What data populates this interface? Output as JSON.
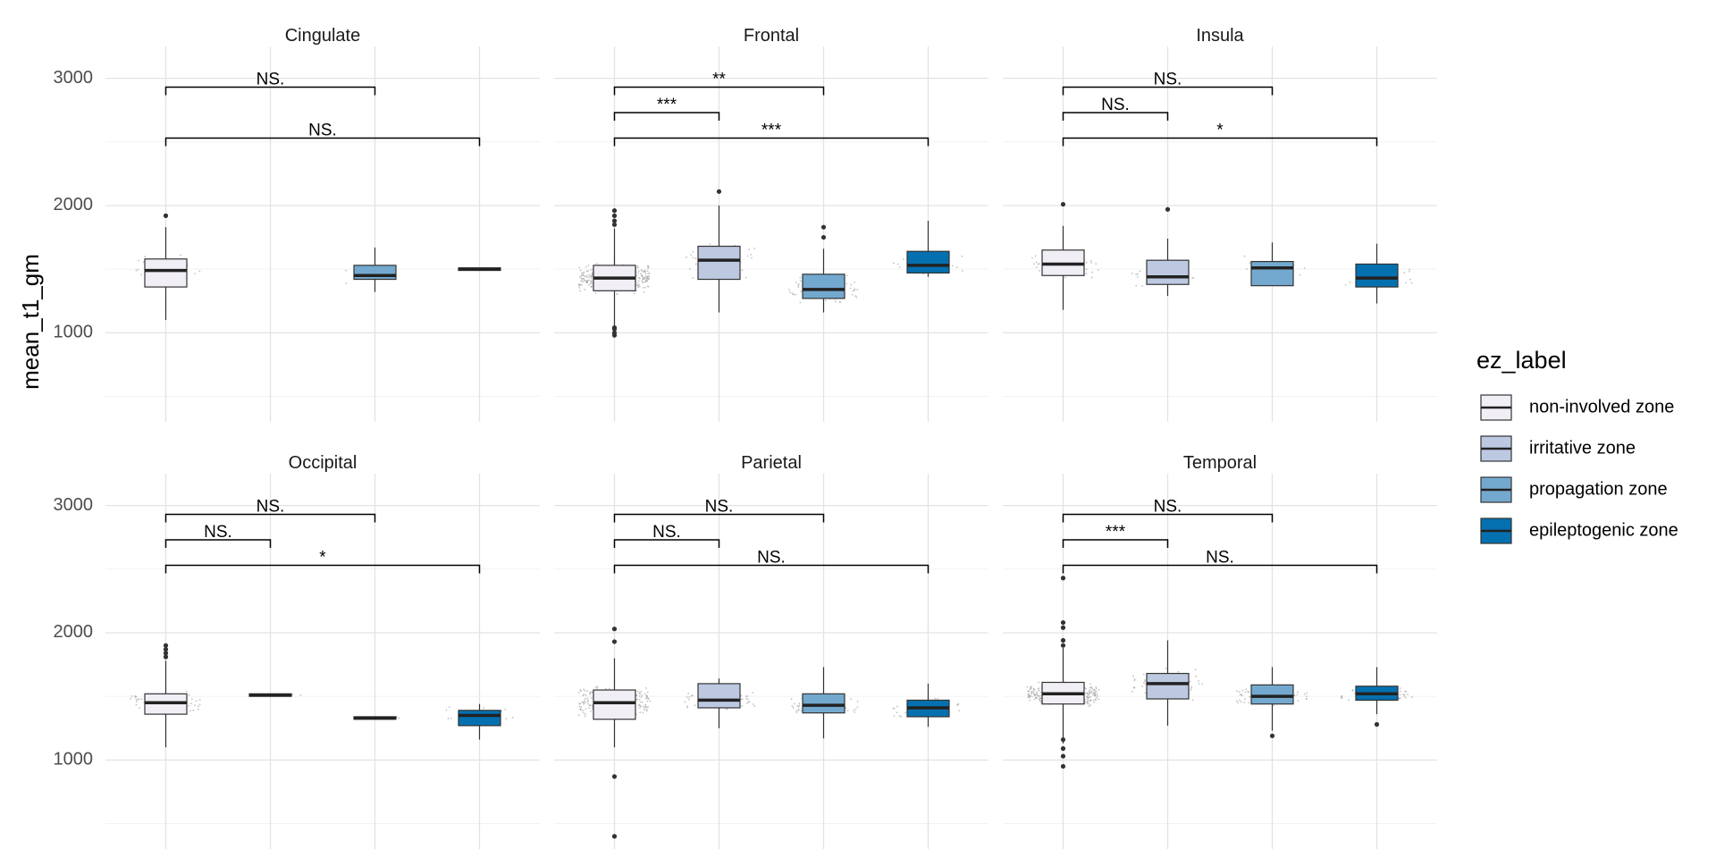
{
  "chart_data": {
    "type": "boxplot",
    "ylabel": "mean_t1_gm",
    "xlabel": "",
    "ylim": [
      300,
      3250
    ],
    "yticks": [
      1000,
      2000,
      3000
    ],
    "y_minor": [
      500,
      1500,
      2500
    ],
    "grid": true,
    "groups": [
      "non-involved zone",
      "irritative zone",
      "propagation zone",
      "epileptogenic zone"
    ],
    "colors": [
      "#f1eef6",
      "#bdc9e1",
      "#74a9cf",
      "#0570b0"
    ],
    "legend": {
      "title": "ez_label",
      "position": "right"
    },
    "facets": [
      {
        "name": "Cingulate",
        "boxes": [
          {
            "group": 0,
            "min": 1100,
            "q1": 1360,
            "median": 1490,
            "q3": 1580,
            "max": 1830,
            "outliers": [
              1920
            ],
            "jitter": 40
          },
          null,
          {
            "group": 2,
            "min": 1320,
            "q1": 1420,
            "median": 1450,
            "q3": 1530,
            "max": 1670,
            "outliers": [],
            "jitter": 8
          },
          {
            "group": 3,
            "min": 1490,
            "q1": 1490,
            "median": 1500,
            "q3": 1510,
            "max": 1510,
            "outliers": [],
            "jitter": 3
          }
        ],
        "comparisons": [
          {
            "from": 0,
            "to": 2,
            "y": 2930,
            "label": "NS."
          },
          {
            "from": 0,
            "to": 3,
            "y": 2530,
            "label": "NS."
          }
        ]
      },
      {
        "name": "Frontal",
        "boxes": [
          {
            "group": 0,
            "min": 1050,
            "q1": 1330,
            "median": 1430,
            "q3": 1530,
            "max": 1820,
            "outliers": [
              980,
              1000,
              1030,
              1040,
              1850,
              1880,
              1920,
              1960
            ],
            "jitter": 300
          },
          {
            "group": 1,
            "min": 1160,
            "q1": 1420,
            "median": 1570,
            "q3": 1680,
            "max": 2000,
            "outliers": [
              2110
            ],
            "jitter": 40
          },
          {
            "group": 2,
            "min": 1160,
            "q1": 1270,
            "median": 1340,
            "q3": 1460,
            "max": 1660,
            "outliers": [
              1750,
              1830
            ],
            "jitter": 70
          },
          {
            "group": 3,
            "min": 1440,
            "q1": 1470,
            "median": 1530,
            "q3": 1640,
            "max": 1880,
            "outliers": [],
            "jitter": 20
          }
        ],
        "comparisons": [
          {
            "from": 0,
            "to": 2,
            "y": 2930,
            "label": "**"
          },
          {
            "from": 0,
            "to": 1,
            "y": 2730,
            "label": "***"
          },
          {
            "from": 0,
            "to": 3,
            "y": 2530,
            "label": "***"
          }
        ]
      },
      {
        "name": "Insula",
        "boxes": [
          {
            "group": 0,
            "min": 1180,
            "q1": 1450,
            "median": 1540,
            "q3": 1650,
            "max": 1840,
            "outliers": [
              2010
            ],
            "jitter": 40
          },
          {
            "group": 1,
            "min": 1290,
            "q1": 1380,
            "median": 1440,
            "q3": 1570,
            "max": 1740,
            "outliers": [
              1970
            ],
            "jitter": 25
          },
          {
            "group": 2,
            "min": 1370,
            "q1": 1370,
            "median": 1510,
            "q3": 1560,
            "max": 1710,
            "outliers": [],
            "jitter": 12
          },
          {
            "group": 3,
            "min": 1230,
            "q1": 1360,
            "median": 1430,
            "q3": 1540,
            "max": 1700,
            "outliers": [],
            "jitter": 20
          }
        ],
        "comparisons": [
          {
            "from": 0,
            "to": 2,
            "y": 2930,
            "label": "NS."
          },
          {
            "from": 0,
            "to": 1,
            "y": 2730,
            "label": "NS."
          },
          {
            "from": 0,
            "to": 3,
            "y": 2530,
            "label": "*"
          }
        ]
      },
      {
        "name": "Occipital",
        "boxes": [
          {
            "group": 0,
            "min": 1100,
            "q1": 1360,
            "median": 1450,
            "q3": 1520,
            "max": 1780,
            "outliers": [
              1810,
              1840,
              1870,
              1900
            ],
            "jitter": 50
          },
          {
            "group": 1,
            "min": 1500,
            "q1": 1500,
            "median": 1510,
            "q3": 1520,
            "max": 1520,
            "outliers": [],
            "jitter": 4
          },
          {
            "group": 2,
            "min": 1320,
            "q1": 1320,
            "median": 1330,
            "q3": 1340,
            "max": 1340,
            "outliers": [],
            "jitter": 3
          },
          {
            "group": 3,
            "min": 1160,
            "q1": 1270,
            "median": 1350,
            "q3": 1390,
            "max": 1440,
            "outliers": [],
            "jitter": 10
          }
        ],
        "comparisons": [
          {
            "from": 0,
            "to": 2,
            "y": 2930,
            "label": "NS."
          },
          {
            "from": 0,
            "to": 1,
            "y": 2730,
            "label": "NS."
          },
          {
            "from": 0,
            "to": 3,
            "y": 2530,
            "label": "*"
          }
        ]
      },
      {
        "name": "Parietal",
        "boxes": [
          {
            "group": 0,
            "min": 1100,
            "q1": 1320,
            "median": 1450,
            "q3": 1550,
            "max": 1800,
            "outliers": [
              400,
              870,
              1930,
              2030
            ],
            "jitter": 220
          },
          {
            "group": 1,
            "min": 1250,
            "q1": 1410,
            "median": 1470,
            "q3": 1600,
            "max": 1640,
            "outliers": [],
            "jitter": 50
          },
          {
            "group": 2,
            "min": 1170,
            "q1": 1370,
            "median": 1430,
            "q3": 1520,
            "max": 1730,
            "outliers": [],
            "jitter": 50
          },
          {
            "group": 3,
            "min": 1260,
            "q1": 1340,
            "median": 1410,
            "q3": 1470,
            "max": 1600,
            "outliers": [],
            "jitter": 30
          }
        ],
        "comparisons": [
          {
            "from": 0,
            "to": 2,
            "y": 2930,
            "label": "NS."
          },
          {
            "from": 0,
            "to": 1,
            "y": 2730,
            "label": "NS."
          },
          {
            "from": 0,
            "to": 3,
            "y": 2530,
            "label": "NS."
          }
        ]
      },
      {
        "name": "Temporal",
        "boxes": [
          {
            "group": 0,
            "min": 1130,
            "q1": 1440,
            "median": 1520,
            "q3": 1610,
            "max": 1880,
            "outliers": [
              950,
              1030,
              1090,
              1160,
              1900,
              1940,
              2040,
              2080,
              2430
            ],
            "jitter": 280
          },
          {
            "group": 1,
            "min": 1270,
            "q1": 1480,
            "median": 1600,
            "q3": 1680,
            "max": 1940,
            "outliers": [],
            "jitter": 60
          },
          {
            "group": 2,
            "min": 1230,
            "q1": 1440,
            "median": 1500,
            "q3": 1590,
            "max": 1730,
            "outliers": [
              1190
            ],
            "jitter": 60
          },
          {
            "group": 3,
            "min": 1360,
            "q1": 1470,
            "median": 1520,
            "q3": 1580,
            "max": 1730,
            "outliers": [
              1280
            ],
            "jitter": 40
          }
        ],
        "comparisons": [
          {
            "from": 0,
            "to": 2,
            "y": 2930,
            "label": "NS."
          },
          {
            "from": 0,
            "to": 1,
            "y": 2730,
            "label": "***"
          },
          {
            "from": 0,
            "to": 3,
            "y": 2530,
            "label": "NS."
          }
        ]
      }
    ]
  }
}
